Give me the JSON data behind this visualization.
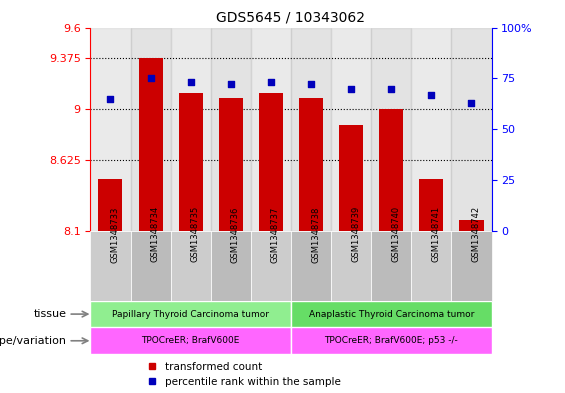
{
  "title": "GDS5645 / 10343062",
  "samples": [
    "GSM1348733",
    "GSM1348734",
    "GSM1348735",
    "GSM1348736",
    "GSM1348737",
    "GSM1348738",
    "GSM1348739",
    "GSM1348740",
    "GSM1348741",
    "GSM1348742"
  ],
  "bar_values": [
    8.48,
    9.375,
    9.12,
    9.08,
    9.12,
    9.08,
    8.88,
    9.0,
    8.48,
    8.18
  ],
  "dot_values": [
    65,
    75,
    73,
    72,
    73,
    72,
    70,
    70,
    67,
    63
  ],
  "ylim_left": [
    8.1,
    9.6
  ],
  "ylim_right": [
    0,
    100
  ],
  "yticks_left": [
    8.1,
    8.625,
    9.0,
    9.375,
    9.6
  ],
  "ytick_labels_left": [
    "8.1",
    "8.625",
    "9",
    "9.375",
    "9.6"
  ],
  "yticks_right": [
    0,
    25,
    50,
    75,
    100
  ],
  "ytick_labels_right": [
    "0",
    "25",
    "50",
    "75",
    "100%"
  ],
  "hlines": [
    9.375,
    9.0,
    8.625
  ],
  "tissue_groups": [
    {
      "label": "Papillary Thyroid Carcinoma tumor",
      "start": 0,
      "end": 4,
      "color": "#90EE90"
    },
    {
      "label": "Anaplastic Thyroid Carcinoma tumor",
      "start": 5,
      "end": 9,
      "color": "#66DD66"
    }
  ],
  "genotype_groups": [
    {
      "label": "TPOCreER; BrafV600E",
      "start": 0,
      "end": 4,
      "color": "#FF66FF"
    },
    {
      "label": "TPOCreER; BrafV600E; p53 -/-",
      "start": 5,
      "end": 9,
      "color": "#FF66FF"
    }
  ],
  "bar_color": "#CC0000",
  "dot_color": "#0000BB",
  "bar_width": 0.6,
  "legend_red": "transformed count",
  "legend_blue": "percentile rank within the sample",
  "tissue_label": "tissue",
  "genotype_label": "genotype/variation",
  "sample_bg_even": "#CCCCCC",
  "sample_bg_odd": "#BBBBBB",
  "chart_bg": "#FFFFFF"
}
